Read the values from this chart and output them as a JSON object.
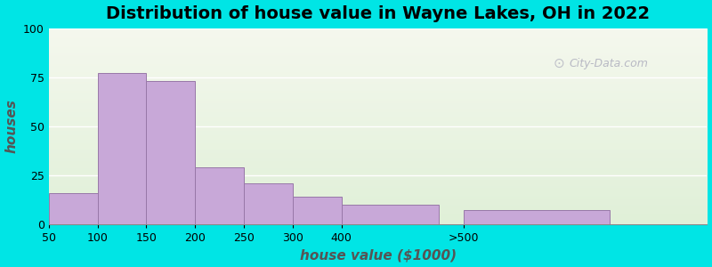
{
  "title": "Distribution of house value in Wayne Lakes, OH in 2022",
  "xlabel": "house value ($1000)",
  "ylabel": "houses",
  "categories": [
    "50",
    "100",
    "150",
    "200",
    "250",
    "300",
    "400",
    ">500"
  ],
  "left_edges": [
    25,
    75,
    125,
    175,
    225,
    275,
    325,
    450
  ],
  "bar_widths": [
    50,
    50,
    50,
    50,
    50,
    50,
    100,
    150
  ],
  "values": [
    16,
    77,
    73,
    29,
    21,
    14,
    10,
    7
  ],
  "bar_color": "#c8a8d8",
  "bar_edge_color": "#9878a8",
  "ylim": [
    0,
    100
  ],
  "yticks": [
    0,
    25,
    50,
    75,
    100
  ],
  "xlim": [
    25,
    700
  ],
  "background_color": "#00e5e5",
  "grid_color": "#ffffff",
  "title_fontsize": 14,
  "axis_label_fontsize": 11,
  "tick_fontsize": 9,
  "watermark_text": "City-Data.com"
}
